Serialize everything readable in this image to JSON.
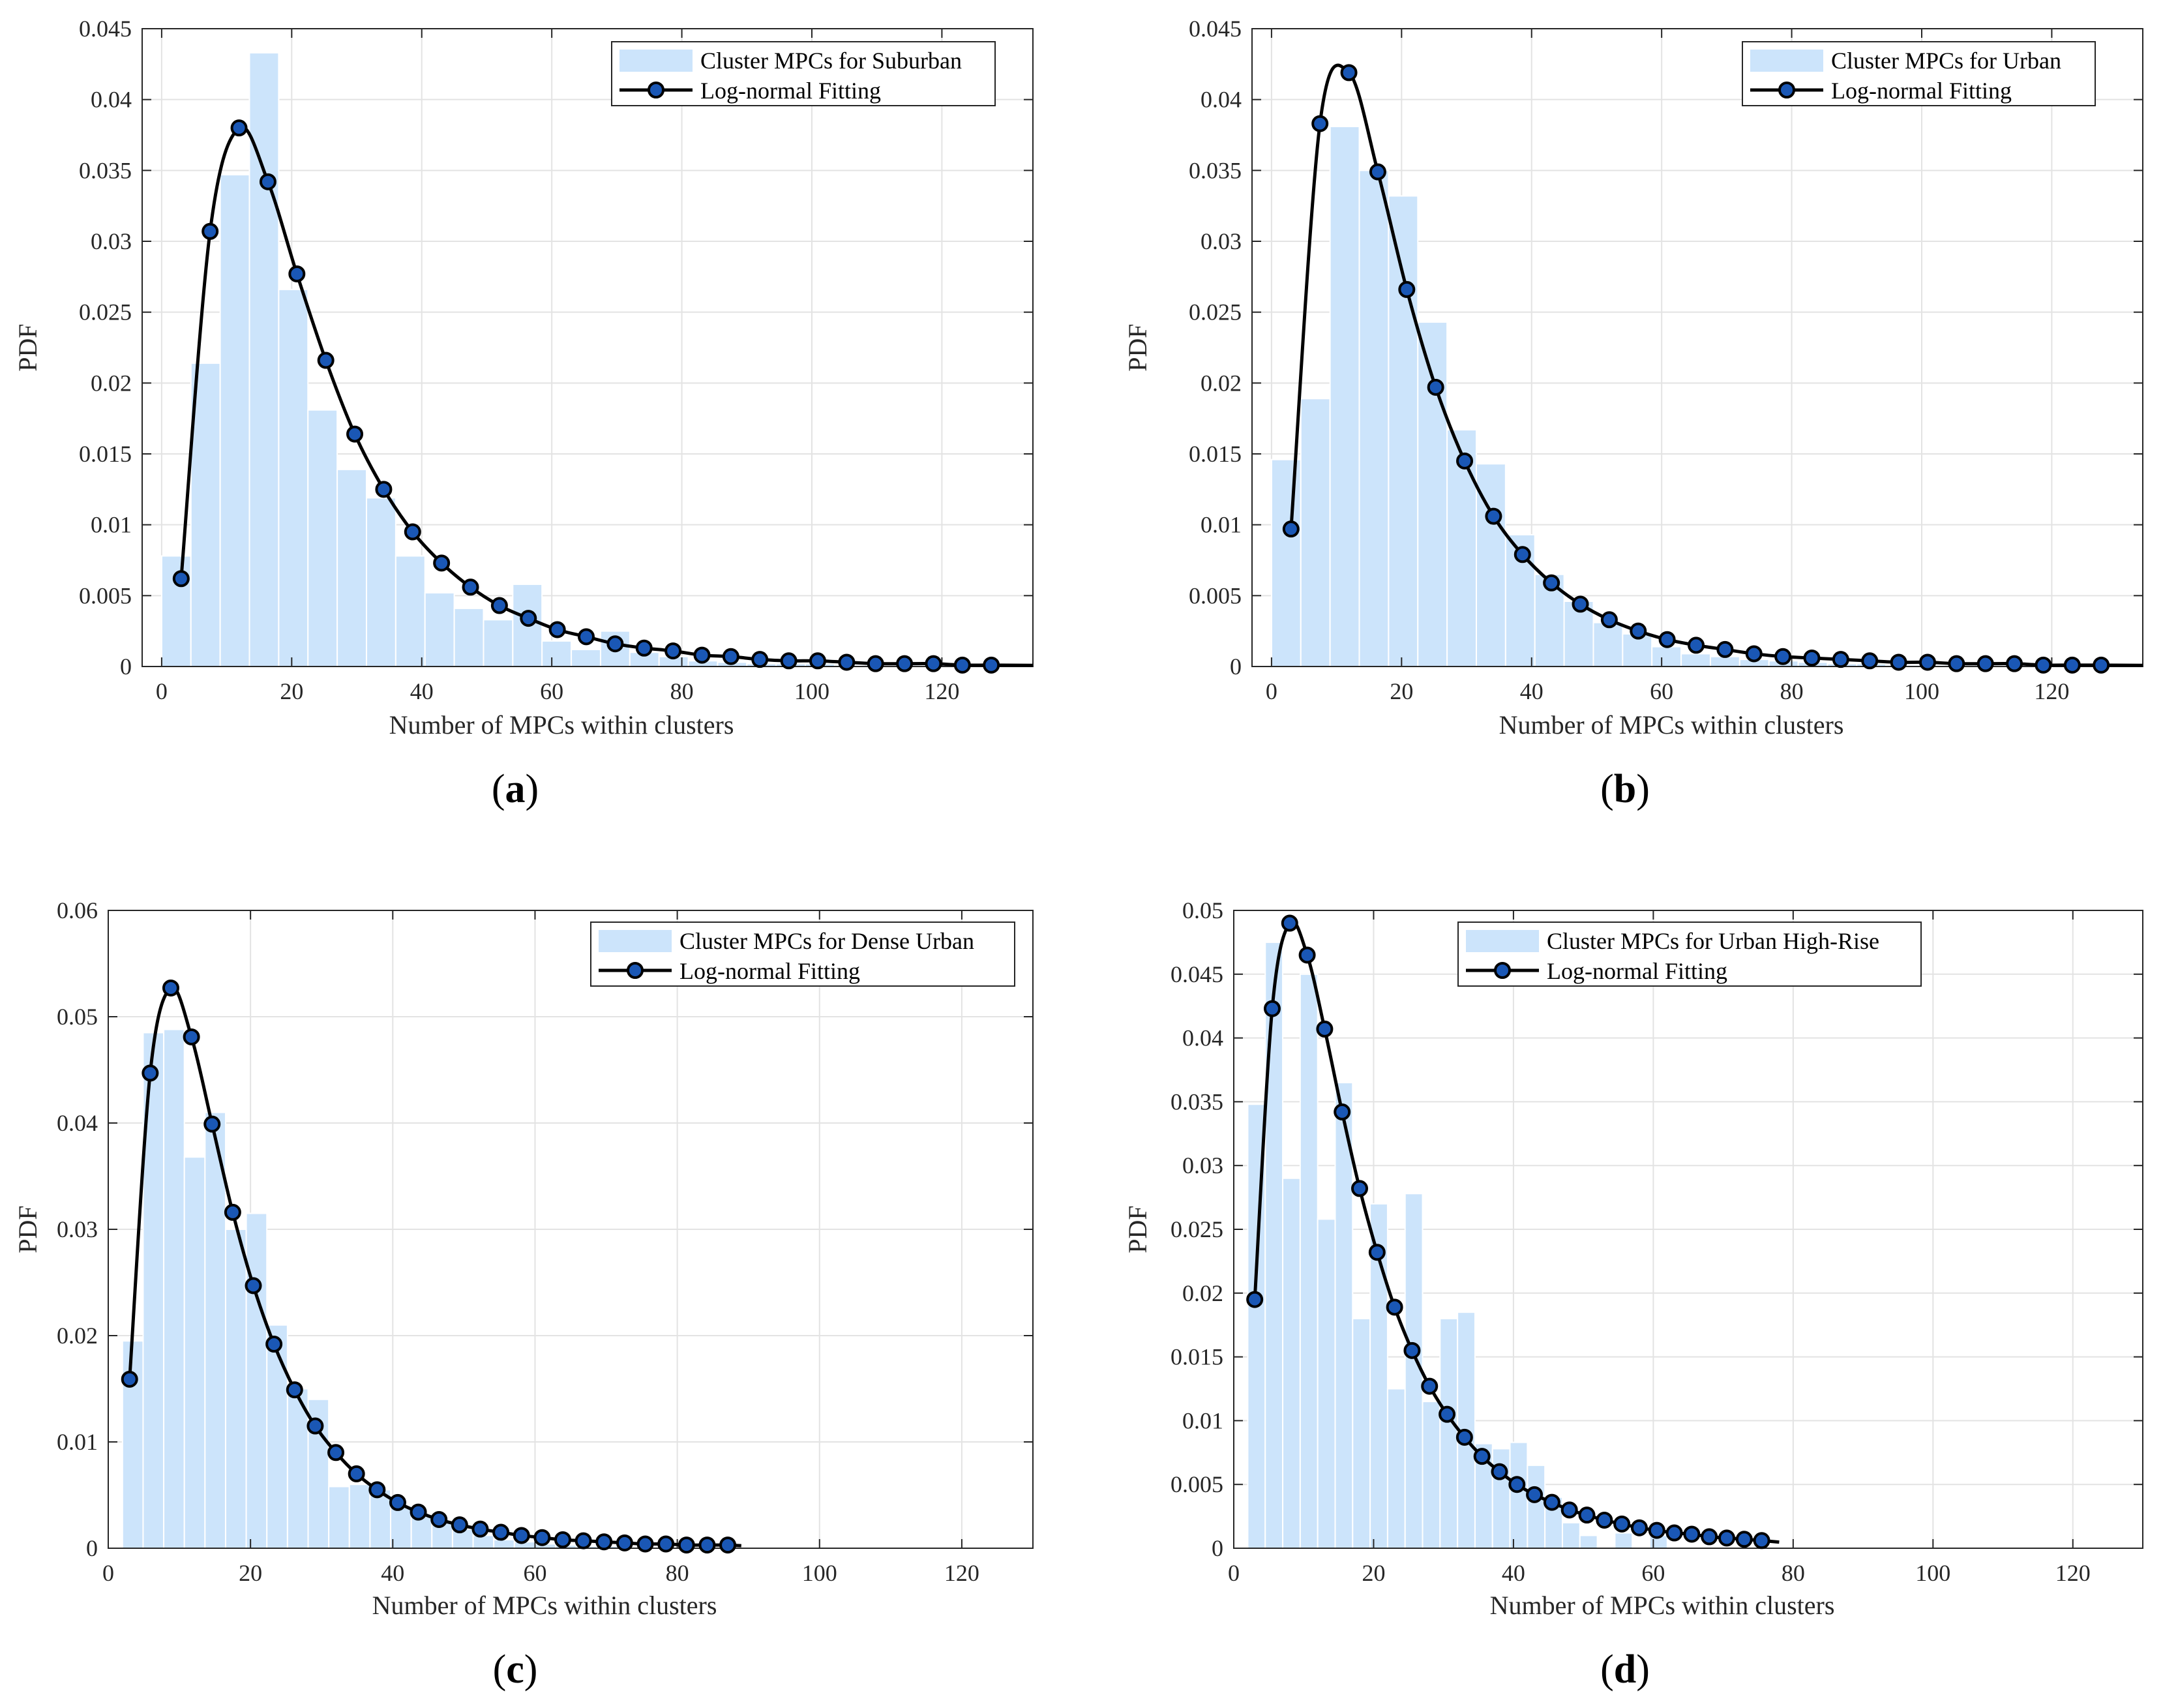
{
  "colors": {
    "bar_fill": "#cce4fb",
    "bar_edge": "#ffffff",
    "fit_line": "#000000",
    "marker_fill": "#1a57b5",
    "grid": "#e3e3e3",
    "axis": "#262626"
  },
  "chart_data": [
    {
      "type": "bar",
      "caption": {
        "letter": "a"
      },
      "title": "",
      "xlabel": "Number of MPCs within clusters",
      "ylabel": "PDF",
      "xlim": [
        -3,
        134
      ],
      "ylim": [
        0,
        0.045
      ],
      "xticks": [
        0,
        20,
        40,
        60,
        80,
        100,
        120
      ],
      "yticks": [
        0,
        0.005,
        0.01,
        0.015,
        0.02,
        0.025,
        0.03,
        0.035,
        0.04,
        0.045
      ],
      "ytick_labels": [
        "0",
        "0.005",
        "0.01",
        "0.015",
        "0.02",
        "0.025",
        "0.03",
        "0.035",
        "0.04",
        "0.045"
      ],
      "grid": true,
      "legend_position": "top-right",
      "legend": [
        "Cluster MPCs for Suburban",
        "Log-normal Fitting"
      ],
      "histogram": {
        "bin_start": 0,
        "bin_width": 4.5,
        "values": [
          0.0078,
          0.0214,
          0.0347,
          0.0433,
          0.0266,
          0.0181,
          0.0139,
          0.0119,
          0.0078,
          0.0052,
          0.0041,
          0.0033,
          0.0058,
          0.0018,
          0.0012,
          0.0025,
          0.001,
          0.0007,
          0.0004,
          0.0003,
          0.0002,
          0.0002,
          0.0002,
          0.0001,
          0.0001,
          0.0001,
          0.0001,
          0.0001
        ]
      },
      "fit": {
        "x": [
          3.0,
          7.45,
          11.9,
          16.35,
          20.8,
          25.25,
          29.7,
          34.15,
          38.6,
          43.05,
          47.5,
          51.95,
          56.4,
          60.85,
          65.3,
          69.75,
          74.2,
          78.65,
          83.1,
          87.55,
          92.0,
          96.45,
          100.9,
          105.35,
          109.8,
          114.25,
          118.7,
          123.15,
          127.6
        ],
        "y": [
          0.0062,
          0.0307,
          0.038,
          0.0342,
          0.0277,
          0.0216,
          0.0164,
          0.0125,
          0.0095,
          0.0073,
          0.0056,
          0.0043,
          0.0034,
          0.0026,
          0.0021,
          0.0016,
          0.0013,
          0.0011,
          0.0008,
          0.0007,
          0.0005,
          0.0004,
          0.0004,
          0.0003,
          0.0002,
          0.0002,
          0.0002,
          0.0001,
          0.0001
        ],
        "tail_end_x": 134
      }
    },
    {
      "type": "bar",
      "caption": {
        "letter": "b"
      },
      "title": "",
      "xlabel": "Number of MPCs within clusters",
      "ylabel": "PDF",
      "xlim": [
        -3,
        134
      ],
      "ylim": [
        0,
        0.045
      ],
      "xticks": [
        0,
        20,
        40,
        60,
        80,
        100,
        120
      ],
      "yticks": [
        0,
        0.005,
        0.01,
        0.015,
        0.02,
        0.025,
        0.03,
        0.035,
        0.04,
        0.045
      ],
      "ytick_labels": [
        "0",
        "0.005",
        "0.01",
        "0.015",
        "0.02",
        "0.025",
        "0.03",
        "0.035",
        "0.04",
        "0.045"
      ],
      "grid": true,
      "legend_position": "top-right",
      "legend": [
        "Cluster MPCs for Urban",
        "Log-normal Fitting"
      ],
      "histogram": {
        "bin_start": 0,
        "bin_width": 4.5,
        "values": [
          0.0146,
          0.0189,
          0.0381,
          0.035,
          0.0332,
          0.0243,
          0.0167,
          0.0143,
          0.0093,
          0.0065,
          0.0046,
          0.0031,
          0.0023,
          0.0014,
          0.0009,
          0.0007,
          0.0005,
          0.0004,
          0.0003,
          0.0002,
          0.0002,
          0.0001,
          0.0001,
          0.0001,
          0.0001,
          0.0001,
          0.0001,
          0.0001
        ]
      },
      "fit": {
        "x": [
          3.0,
          7.45,
          11.9,
          16.35,
          20.8,
          25.25,
          29.7,
          34.15,
          38.6,
          43.05,
          47.5,
          51.95,
          56.4,
          60.85,
          65.3,
          69.75,
          74.2,
          78.65,
          83.1,
          87.55,
          92.0,
          96.45,
          100.9,
          105.35,
          109.8,
          114.25,
          118.7,
          123.15,
          127.6
        ],
        "y": [
          0.0097,
          0.0383,
          0.0419,
          0.0349,
          0.0266,
          0.0197,
          0.0145,
          0.0106,
          0.0079,
          0.0059,
          0.0044,
          0.0033,
          0.0025,
          0.0019,
          0.0015,
          0.0012,
          0.0009,
          0.0007,
          0.0006,
          0.0005,
          0.0004,
          0.0003,
          0.0003,
          0.0002,
          0.0002,
          0.0002,
          0.0001,
          0.0001,
          0.0001
        ],
        "tail_end_x": 134
      }
    },
    {
      "type": "bar",
      "caption": {
        "letter": "c"
      },
      "title": "",
      "xlabel": "Number of MPCs within clusters",
      "ylabel": "PDF",
      "xlim": [
        0,
        130
      ],
      "ylim": [
        0,
        0.06
      ],
      "xticks": [
        0,
        20,
        40,
        60,
        80,
        100,
        120
      ],
      "yticks": [
        0,
        0.01,
        0.02,
        0.03,
        0.04,
        0.05,
        0.06
      ],
      "ytick_labels": [
        "0",
        "0.01",
        "0.02",
        "0.03",
        "0.04",
        "0.05",
        "0.06"
      ],
      "grid": true,
      "legend_position": "top-right",
      "legend": [
        "Cluster MPCs for Dense Urban",
        "Log-normal Fitting"
      ],
      "histogram": {
        "bin_start": 2,
        "bin_width": 2.9,
        "values": [
          0.0195,
          0.0485,
          0.0488,
          0.0368,
          0.041,
          0.03,
          0.0315,
          0.021,
          0.015,
          0.014,
          0.0058,
          0.006,
          0.0055,
          0.004,
          0.003,
          0.0025,
          0.0018,
          0.0012,
          0.0008,
          0.0006,
          0.0004,
          0.0003,
          0.0002,
          0.0002,
          0.0001,
          0.0001,
          0.0001,
          0.0001,
          0.0001,
          0.0001
        ]
      },
      "fit": {
        "x": [
          3.0,
          5.9,
          8.8,
          11.7,
          14.6,
          17.5,
          20.4,
          23.3,
          26.2,
          29.1,
          32.0,
          34.9,
          37.8,
          40.7,
          43.6,
          46.5,
          49.4,
          52.3,
          55.2,
          58.1,
          61.0,
          63.9,
          66.8,
          69.7,
          72.6,
          75.5,
          78.4,
          81.3,
          84.2,
          87.1
        ],
        "y": [
          0.0159,
          0.0447,
          0.0527,
          0.0481,
          0.0399,
          0.0316,
          0.0247,
          0.0192,
          0.0149,
          0.0115,
          0.009,
          0.007,
          0.0055,
          0.0043,
          0.0034,
          0.0027,
          0.0022,
          0.0018,
          0.0015,
          0.0012,
          0.001,
          0.0008,
          0.0007,
          0.0006,
          0.0005,
          0.0004,
          0.0004,
          0.0003,
          0.0003,
          0.0003
        ],
        "tail_end_x": 89
      }
    },
    {
      "type": "bar",
      "caption": {
        "letter": "d"
      },
      "title": "",
      "xlabel": "Number of MPCs within clusters",
      "ylabel": "PDF",
      "xlim": [
        0,
        130
      ],
      "ylim": [
        0,
        0.05
      ],
      "xticks": [
        0,
        20,
        40,
        60,
        80,
        100,
        120
      ],
      "yticks": [
        0,
        0.005,
        0.01,
        0.015,
        0.02,
        0.025,
        0.03,
        0.035,
        0.04,
        0.045,
        0.05
      ],
      "ytick_labels": [
        "0",
        "0.005",
        "0.01",
        "0.015",
        "0.02",
        "0.025",
        "0.03",
        "0.035",
        "0.04",
        "0.045",
        "0.05"
      ],
      "grid": true,
      "legend_position": "top-right",
      "legend": [
        "Cluster MPCs for Urban High-Rise",
        "Log-normal Fitting"
      ],
      "histogram": {
        "bin_start": 2,
        "bin_width": 2.5,
        "values": [
          0.0348,
          0.0475,
          0.029,
          0.045,
          0.0258,
          0.0365,
          0.018,
          0.027,
          0.0125,
          0.0278,
          0.0115,
          0.018,
          0.0185,
          0.0082,
          0.0078,
          0.0083,
          0.0065,
          0.004,
          0.002,
          0.001,
          0.0,
          0.0012,
          0.0,
          0.001,
          0.0,
          0.0,
          0.0,
          0.0,
          0.0,
          0.0
        ]
      },
      "fit": {
        "x": [
          3.0,
          5.5,
          8.0,
          10.5,
          13.0,
          15.5,
          18.0,
          20.5,
          23.0,
          25.5,
          28.0,
          30.5,
          33.0,
          35.5,
          38.0,
          40.5,
          43.0,
          45.5,
          48.0,
          50.5,
          53.0,
          55.5,
          58.0,
          60.5,
          63.0,
          65.5,
          68.0,
          70.5,
          73.0,
          75.5
        ],
        "y": [
          0.0195,
          0.0423,
          0.049,
          0.0465,
          0.0407,
          0.0342,
          0.0282,
          0.0232,
          0.0189,
          0.0155,
          0.0127,
          0.0105,
          0.0087,
          0.0072,
          0.006,
          0.005,
          0.0042,
          0.0036,
          0.003,
          0.0026,
          0.0022,
          0.0019,
          0.0016,
          0.0014,
          0.0012,
          0.0011,
          0.0009,
          0.0008,
          0.0007,
          0.0006
        ],
        "tail_end_x": 78
      }
    }
  ]
}
